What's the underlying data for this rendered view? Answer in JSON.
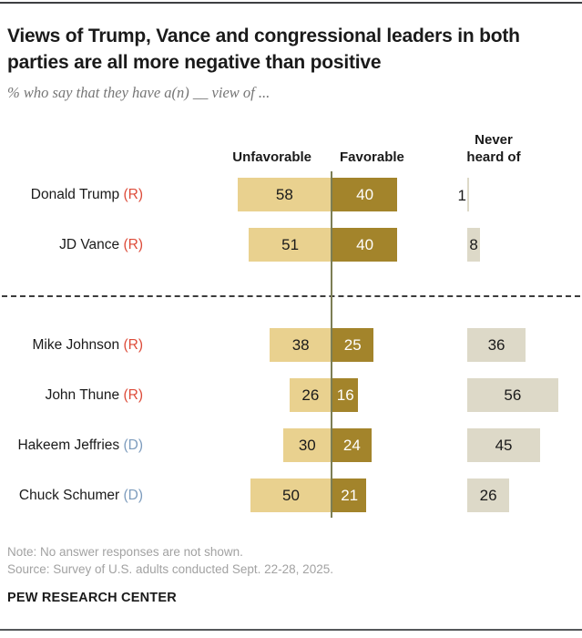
{
  "header": {
    "title": "Views of Trump, Vance and congressional leaders in both parties are all more negative than positive",
    "subtitle": "% who say that they have a(n) __ view of ..."
  },
  "chart_data": {
    "type": "bar",
    "orientation": "horizontal-diverging",
    "columns": [
      "Unfavorable",
      "Favorable",
      "Never heard of"
    ],
    "unit": "percent",
    "groups": [
      {
        "rows": [
          {
            "name": "Donald Trump",
            "party": "R",
            "unfavorable": 58,
            "favorable": 40,
            "never_heard_of": 1
          },
          {
            "name": "JD Vance",
            "party": "R",
            "unfavorable": 51,
            "favorable": 40,
            "never_heard_of": 8
          }
        ]
      },
      {
        "rows": [
          {
            "name": "Mike Johnson",
            "party": "R",
            "unfavorable": 38,
            "favorable": 25,
            "never_heard_of": 36
          },
          {
            "name": "John Thune",
            "party": "R",
            "unfavorable": 26,
            "favorable": 16,
            "never_heard_of": 56
          },
          {
            "name": "Hakeem Jeffries",
            "party": "D",
            "unfavorable": 30,
            "favorable": 24,
            "never_heard_of": 45
          },
          {
            "name": "Chuck Schumer",
            "party": "D",
            "unfavorable": 50,
            "favorable": 21,
            "never_heard_of": 26
          }
        ]
      }
    ],
    "colors": {
      "unfavorable": "#e9d18f",
      "favorable": "#a3842b",
      "never_heard_of": "#ddd9c8",
      "axis_line": "#7c7e55",
      "party_r": "#dd4b39",
      "party_d": "#7d9cbd"
    },
    "legend_position": "column-headers",
    "grid": false
  },
  "footer": {
    "note": "Note: No answer responses are not shown.",
    "source": "Source: Survey of U.S. adults conducted Sept. 22-28, 2025.",
    "brand": "PEW RESEARCH CENTER"
  }
}
